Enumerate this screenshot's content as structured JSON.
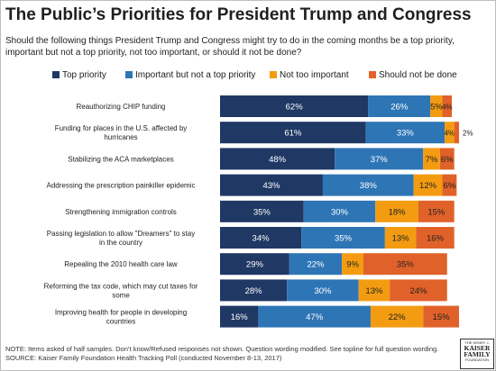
{
  "title": "The Public’s Priorities for President Trump and Congress",
  "subtitle": "Should the following things President Trump and Congress might try to do in the coming months be a top priority, important but not a top priority, not too important, or should it not be done?",
  "note": "NOTE: Items asked of half samples. Don’t know/Refused responses not shown. Question wording modified. See topline for full question wording.",
  "source": "SOURCE: Kaiser Family Foundation Health Tracking Poll (conducted November 8-13, 2017)",
  "logo": {
    "top": "THE HENRY J.",
    "line1": "KAISER",
    "line2": "FAMILY",
    "bottom": "FOUNDATION"
  },
  "colors": {
    "top_priority": "#1f3864",
    "important": "#2e75b6",
    "not_too_important": "#f39c12",
    "not_done": "#e0622a"
  },
  "chart_data": {
    "type": "bar",
    "orientation": "horizontal",
    "stacked": true,
    "categories": [
      "Reauthorizing CHIP funding",
      "Funding for places in the U.S. affected by hurricanes",
      "Stabilizing the ACA marketplaces",
      "Addressing the prescription painkiller epidemic",
      "Strengthening immigration controls",
      "Passing legislation to allow \"Dreamers\" to stay in the country",
      "Repealing the 2010 health care law",
      "Reforming the tax code, which may cut taxes for some",
      "Improving health for people in developing countries"
    ],
    "series": [
      {
        "name": "Top priority",
        "values": [
          62,
          61,
          48,
          43,
          35,
          34,
          29,
          28,
          16
        ]
      },
      {
        "name": "Important but not a top priority",
        "values": [
          26,
          33,
          37,
          38,
          30,
          35,
          22,
          30,
          47
        ]
      },
      {
        "name": "Not too important",
        "values": [
          5,
          4,
          7,
          12,
          18,
          13,
          9,
          13,
          22
        ]
      },
      {
        "name": "Should not be done",
        "values": [
          4,
          2,
          6,
          6,
          15,
          16,
          35,
          24,
          15
        ]
      }
    ],
    "xlim": [
      0,
      100
    ],
    "grid": false,
    "legend_position": "top"
  }
}
